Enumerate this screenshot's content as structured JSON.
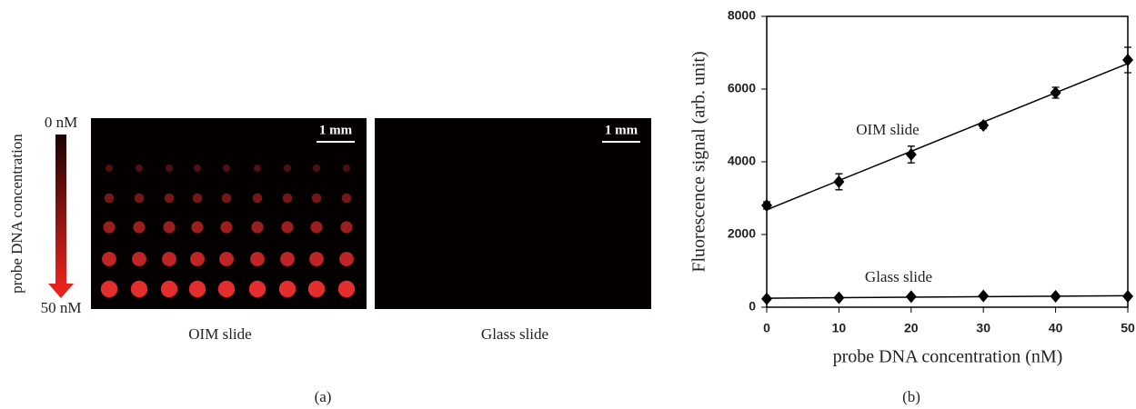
{
  "panel_a": {
    "top_label": "0 nM",
    "bottom_label": "50 nM",
    "axis_label": "probe DNA concentration",
    "scale_bar": "1 mm",
    "left_caption": "OIM slide",
    "right_caption": "Glass slide",
    "panel_label": "(a)"
  },
  "chart_data": {
    "type": "scatter",
    "trendline": true,
    "ylabel": "Fluorescence signal (arb. unit)",
    "xlabel": "probe DNA concentration (nM)",
    "panel_label": "(b)",
    "x": [
      0,
      10,
      20,
      30,
      40,
      50
    ],
    "series": [
      {
        "name": "OIM slide",
        "color": "#000000",
        "values": [
          2800,
          3450,
          4200,
          5000,
          5900,
          6800
        ],
        "errors": [
          100,
          220,
          230,
          80,
          150,
          350
        ]
      },
      {
        "name": "Glass slide",
        "color": "#000000",
        "values": [
          230,
          260,
          290,
          310,
          300,
          300
        ],
        "errors": [
          20,
          20,
          20,
          20,
          20,
          20
        ]
      }
    ],
    "xlim": [
      0,
      50
    ],
    "xticks": [
      0,
      10,
      20,
      30,
      40,
      50
    ],
    "ylim": [
      0,
      8000
    ],
    "yticks": [
      0,
      2000,
      4000,
      6000,
      8000
    ]
  }
}
